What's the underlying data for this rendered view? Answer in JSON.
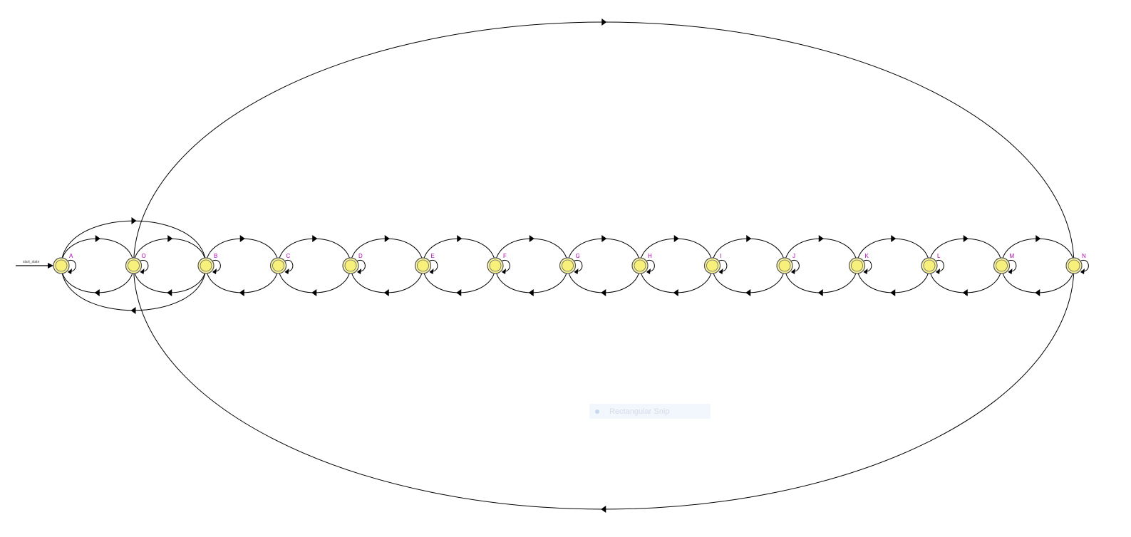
{
  "diagram": {
    "start_label": "start_state",
    "states": [
      {
        "id": "A",
        "label": "A",
        "self_loop": true
      },
      {
        "id": "O",
        "label": "O",
        "self_loop": true
      },
      {
        "id": "B",
        "label": "B",
        "self_loop": true
      },
      {
        "id": "C",
        "label": "C",
        "self_loop": true
      },
      {
        "id": "D",
        "label": "D",
        "self_loop": true
      },
      {
        "id": "E",
        "label": "E",
        "self_loop": true
      },
      {
        "id": "F",
        "label": "F",
        "self_loop": true
      },
      {
        "id": "G",
        "label": "G",
        "self_loop": true
      },
      {
        "id": "H",
        "label": "H",
        "self_loop": true
      },
      {
        "id": "I",
        "label": "I",
        "self_loop": true
      },
      {
        "id": "J",
        "label": "J",
        "self_loop": true
      },
      {
        "id": "K",
        "label": "K",
        "self_loop": true
      },
      {
        "id": "L",
        "label": "L",
        "self_loop": true
      },
      {
        "id": "M",
        "label": "M",
        "self_loop": true
      },
      {
        "id": "N",
        "label": "N",
        "self_loop": true
      }
    ],
    "transitions": [
      {
        "from": "A",
        "to": "O"
      },
      {
        "from": "O",
        "to": "A"
      },
      {
        "from": "O",
        "to": "B"
      },
      {
        "from": "B",
        "to": "O"
      },
      {
        "from": "B",
        "to": "C"
      },
      {
        "from": "C",
        "to": "B"
      },
      {
        "from": "C",
        "to": "D"
      },
      {
        "from": "D",
        "to": "C"
      },
      {
        "from": "D",
        "to": "E"
      },
      {
        "from": "E",
        "to": "D"
      },
      {
        "from": "E",
        "to": "F"
      },
      {
        "from": "F",
        "to": "E"
      },
      {
        "from": "F",
        "to": "G"
      },
      {
        "from": "G",
        "to": "F"
      },
      {
        "from": "G",
        "to": "H"
      },
      {
        "from": "H",
        "to": "G"
      },
      {
        "from": "H",
        "to": "I"
      },
      {
        "from": "I",
        "to": "H"
      },
      {
        "from": "I",
        "to": "J"
      },
      {
        "from": "J",
        "to": "I"
      },
      {
        "from": "J",
        "to": "K"
      },
      {
        "from": "K",
        "to": "J"
      },
      {
        "from": "K",
        "to": "L"
      },
      {
        "from": "L",
        "to": "K"
      },
      {
        "from": "L",
        "to": "M"
      },
      {
        "from": "M",
        "to": "L"
      },
      {
        "from": "M",
        "to": "N"
      },
      {
        "from": "N",
        "to": "M"
      },
      {
        "from": "A",
        "to": "B"
      },
      {
        "from": "B",
        "to": "A"
      },
      {
        "from": "O",
        "to": "N"
      },
      {
        "from": "N",
        "to": "O"
      }
    ]
  },
  "overlay": {
    "snip_label": "Rectangular Snip",
    "snip_icon": "snip-icon"
  }
}
